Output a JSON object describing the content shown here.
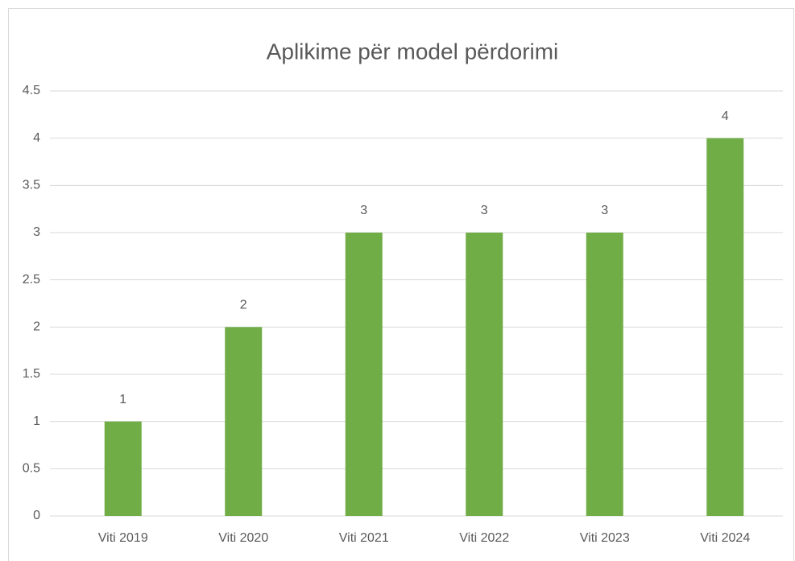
{
  "chart_data": {
    "type": "bar",
    "title": "Aplikime për model përdorimi",
    "categories": [
      "Viti 2019",
      "Viti 2020",
      "Viti 2021",
      "Viti 2022",
      "Viti 2023",
      "Viti 2024"
    ],
    "values": [
      1,
      2,
      3,
      3,
      3,
      4
    ],
    "color": "#70ad47",
    "ylim": [
      0,
      4.5
    ],
    "yticks": [
      0,
      0.5,
      1,
      1.5,
      2,
      2.5,
      3,
      3.5,
      4,
      4.5
    ],
    "grid": true
  }
}
